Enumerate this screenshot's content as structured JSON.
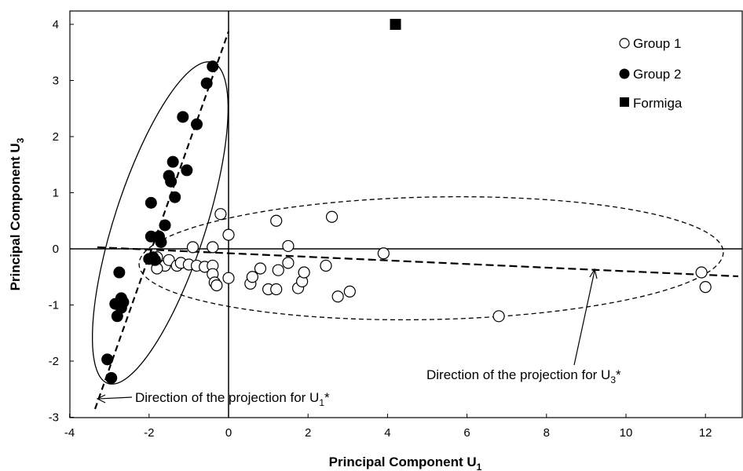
{
  "chart_data": {
    "type": "scatter",
    "xlabel": "Principal Component U",
    "xlabel_sub": "1",
    "ylabel": "Principal Component U",
    "ylabel_sub": "3",
    "xlim": [
      -4,
      13
    ],
    "ylim": [
      -3,
      4.2
    ],
    "xticks": [
      -4,
      -2,
      0,
      2,
      4,
      6,
      8,
      10,
      12
    ],
    "yticks": [
      -3,
      -2,
      -1,
      0,
      1,
      2,
      3,
      4
    ],
    "grid": false,
    "legend_position": "top-right",
    "series": [
      {
        "name": "Group 1",
        "marker": "open-circle",
        "points": [
          [
            -0.2,
            0.62
          ],
          [
            0,
            0.25
          ],
          [
            1.2,
            0.5
          ],
          [
            2.6,
            0.57
          ],
          [
            1.5,
            0.05
          ],
          [
            3.9,
            -0.08
          ],
          [
            -0.9,
            0.03
          ],
          [
            -0.4,
            0.03
          ],
          [
            -1.8,
            -0.15
          ],
          [
            -1.6,
            -0.3
          ],
          [
            -1.5,
            -0.2
          ],
          [
            -1.3,
            -0.3
          ],
          [
            -1.2,
            -0.25
          ],
          [
            -1.0,
            -0.28
          ],
          [
            -0.8,
            -0.3
          ],
          [
            -0.6,
            -0.32
          ],
          [
            -0.4,
            -0.3
          ],
          [
            -0.4,
            -0.45
          ],
          [
            -0.35,
            -0.6
          ],
          [
            -0.3,
            -0.65
          ],
          [
            -1.8,
            -0.35
          ],
          [
            0,
            -0.52
          ],
          [
            0.55,
            -0.62
          ],
          [
            0.6,
            -0.5
          ],
          [
            0.8,
            -0.35
          ],
          [
            1.0,
            -0.72
          ],
          [
            1.2,
            -0.72
          ],
          [
            1.25,
            -0.38
          ],
          [
            1.5,
            -0.25
          ],
          [
            1.75,
            -0.7
          ],
          [
            1.85,
            -0.58
          ],
          [
            1.9,
            -0.42
          ],
          [
            2.45,
            -0.3
          ],
          [
            2.75,
            -0.85
          ],
          [
            3.05,
            -0.76
          ],
          [
            6.8,
            -1.2
          ],
          [
            11.9,
            -0.42
          ],
          [
            12.0,
            -0.68
          ]
        ]
      },
      {
        "name": "Group 2",
        "marker": "filled-circle",
        "points": [
          [
            -0.4,
            3.25
          ],
          [
            -0.55,
            2.95
          ],
          [
            -1.15,
            2.35
          ],
          [
            -0.8,
            2.22
          ],
          [
            -1.4,
            1.55
          ],
          [
            -1.05,
            1.4
          ],
          [
            -1.5,
            1.3
          ],
          [
            -1.45,
            1.2
          ],
          [
            -1.35,
            0.92
          ],
          [
            -1.95,
            0.82
          ],
          [
            -1.6,
            0.42
          ],
          [
            -1.75,
            0.22
          ],
          [
            -1.95,
            0.22
          ],
          [
            -1.7,
            0.12
          ],
          [
            -1.9,
            -0.15
          ],
          [
            -2.0,
            -0.18
          ],
          [
            -1.85,
            -0.2
          ],
          [
            -2.75,
            -0.42
          ],
          [
            -2.7,
            -0.88
          ],
          [
            -2.65,
            -0.95
          ],
          [
            -2.85,
            -0.98
          ],
          [
            -2.7,
            -1.05
          ],
          [
            -2.8,
            -1.2
          ],
          [
            -3.05,
            -1.97
          ],
          [
            -2.95,
            -2.3
          ]
        ]
      },
      {
        "name": "Formiga",
        "marker": "filled-square",
        "points": [
          [
            4.2,
            4.0
          ]
        ]
      }
    ],
    "annotations": [
      {
        "text": "Direction of the projection for U",
        "sub": "1",
        "suffix": "*"
      },
      {
        "text": "Direction of the projection for U",
        "sub": "3",
        "suffix": "*"
      }
    ]
  }
}
